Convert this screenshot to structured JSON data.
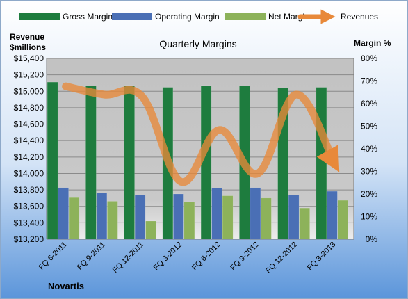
{
  "chart_data": {
    "type": "bar",
    "title": "Quarterly Margins",
    "company": "Novartis",
    "left_axis_label_line1": "Revenue",
    "left_axis_label_line2": "$millions",
    "right_axis_label": "Margin %",
    "categories": [
      "FQ 6-2011",
      "FQ 9-2011",
      "FQ 12-2011",
      "FQ 3-2012",
      "FQ 6-2012",
      "FQ 9-2012",
      "FQ 12-2012",
      "FQ 3-2013"
    ],
    "left_ylim": [
      13200,
      15400
    ],
    "left_ticks": [
      "$13,200",
      "$13,400",
      "$13,600",
      "$13,800",
      "$14,000",
      "$14,200",
      "$14,400",
      "$14,600",
      "$14,800",
      "$15,000",
      "$15,200",
      "$15,400"
    ],
    "right_ylim": [
      0,
      80
    ],
    "right_ticks": [
      "0%",
      "10%",
      "20%",
      "30%",
      "40%",
      "50%",
      "60%",
      "70%",
      "80%"
    ],
    "series": [
      {
        "name": "Gross Margin",
        "axis": "right",
        "kind": "bar",
        "color": "#1e7c3e",
        "values": [
          69.5,
          67.8,
          68.0,
          67.2,
          68.0,
          67.8,
          67.0,
          67.2
        ]
      },
      {
        "name": "Operating Margin",
        "axis": "right",
        "kind": "bar",
        "color": "#4a6fb5",
        "values": [
          22.8,
          20.4,
          19.6,
          20.0,
          22.6,
          22.8,
          19.6,
          21.2
        ]
      },
      {
        "name": "Net Margin",
        "axis": "right",
        "kind": "bar",
        "color": "#8db25a",
        "values": [
          18.4,
          16.8,
          8.0,
          16.4,
          19.2,
          18.2,
          13.8,
          17.2
        ]
      },
      {
        "name": "Revenues",
        "axis": "left",
        "kind": "line",
        "color": "#e8893a",
        "values": [
          15060,
          14960,
          14930,
          13900,
          14530,
          14000,
          14960,
          14120
        ]
      }
    ],
    "legend_position": "top",
    "grid": true
  }
}
